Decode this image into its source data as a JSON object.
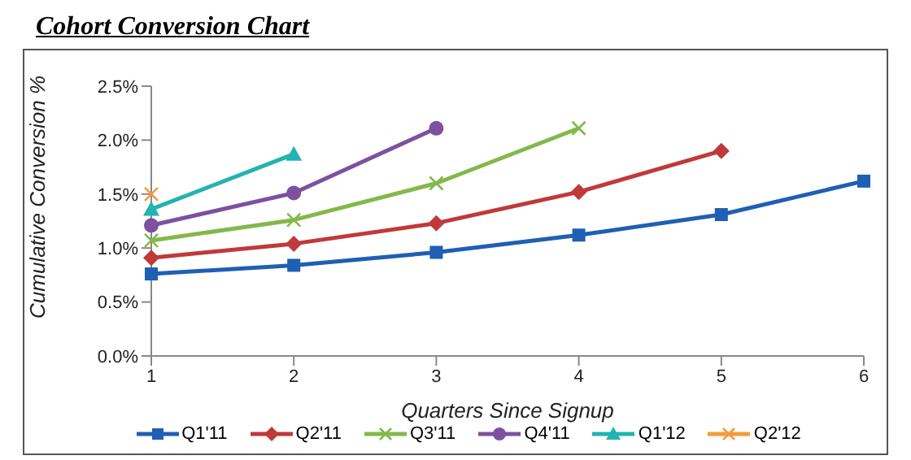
{
  "chart_data": {
    "type": "line",
    "title": "Cohort Conversion Chart",
    "xlabel": "Quarters Since Signup",
    "ylabel": "Cumulative  Conversion %",
    "categories": [
      "1",
      "2",
      "3",
      "4",
      "5",
      "6"
    ],
    "series": [
      {
        "name": "Q1'11",
        "color": "#1f5fb4",
        "marker": "square",
        "values": [
          0.76,
          0.84,
          0.96,
          1.12,
          1.31,
          1.62
        ]
      },
      {
        "name": "Q2'11",
        "color": "#c0393b",
        "marker": "diamond",
        "values": [
          0.91,
          1.04,
          1.23,
          1.52,
          1.9,
          null
        ]
      },
      {
        "name": "Q3'11",
        "color": "#84b84a",
        "marker": "cross",
        "values": [
          1.07,
          1.26,
          1.6,
          2.11,
          null,
          null
        ]
      },
      {
        "name": "Q4'11",
        "color": "#7d50a0",
        "marker": "circle",
        "values": [
          1.21,
          1.51,
          2.11,
          null,
          null,
          null
        ]
      },
      {
        "name": "Q1'12",
        "color": "#23b3b0",
        "marker": "triangle",
        "values": [
          1.36,
          1.87,
          null,
          null,
          null,
          null
        ]
      },
      {
        "name": "Q2'12",
        "color": "#f59a3c",
        "marker": "cross",
        "values": [
          1.5,
          null,
          null,
          null,
          null,
          null
        ]
      }
    ],
    "ylim": [
      0,
      2.5
    ],
    "yticks": [
      {
        "value": 0,
        "label": "0.0%"
      },
      {
        "value": 0.5,
        "label": "0.5%"
      },
      {
        "value": 1,
        "label": "1.0%"
      },
      {
        "value": 1.5,
        "label": "1.5%"
      },
      {
        "value": 2,
        "label": "2.0%"
      },
      {
        "value": 2.5,
        "label": "2.5%"
      }
    ],
    "grid": false,
    "legend": "bottom",
    "line_style": "solid"
  }
}
